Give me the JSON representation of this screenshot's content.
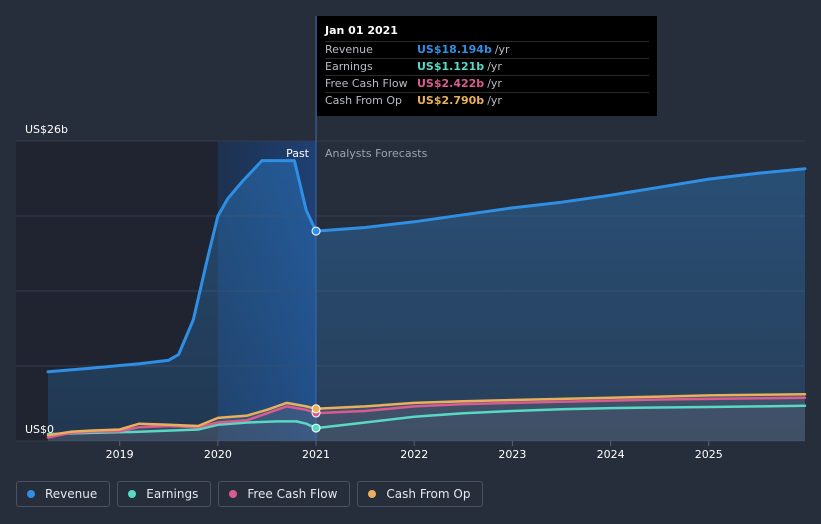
{
  "chart_data": {
    "type": "area",
    "y_top_label": "US$26b",
    "y_bottom_label": "US$0",
    "ylim": [
      0,
      26
    ],
    "xlim": [
      2018.27,
      2025.98
    ],
    "x_ticks": [
      2019,
      2020,
      2021,
      2022,
      2023,
      2024,
      2025
    ],
    "x_tick_labels": [
      "2019",
      "2020",
      "2021",
      "2022",
      "2023",
      "2024",
      "2025"
    ],
    "divider_x": 2021.0,
    "past_label": "Past",
    "forecast_label": "Analysts Forecasts",
    "highlight_range": [
      2020.0,
      2021.0
    ],
    "series": [
      {
        "name": "Revenue",
        "color": "#2f8fe4",
        "x": [
          2018.27,
          2018.7,
          2019.2,
          2019.5,
          2019.6,
          2019.75,
          2019.9,
          2020.0,
          2020.1,
          2020.25,
          2020.45,
          2020.6,
          2020.78,
          2020.9,
          2021.0,
          2021.5,
          2022.0,
          2022.5,
          2023.0,
          2023.5,
          2024.0,
          2024.5,
          2025.0,
          2025.5,
          2025.98
        ],
        "y": [
          6.0,
          6.3,
          6.7,
          7.0,
          7.5,
          10.5,
          16.0,
          19.5,
          21.0,
          22.5,
          24.3,
          24.3,
          24.3,
          20.0,
          18.194,
          18.5,
          19.0,
          19.6,
          20.2,
          20.7,
          21.3,
          22.0,
          22.7,
          23.2,
          23.6
        ]
      },
      {
        "name": "Earnings",
        "color": "#59d8c4",
        "x": [
          2018.27,
          2018.7,
          2019.2,
          2019.5,
          2019.8,
          2020.0,
          2020.3,
          2020.6,
          2020.8,
          2020.9,
          2021.0,
          2021.5,
          2022.0,
          2022.5,
          2023.0,
          2023.5,
          2024.0,
          2024.5,
          2025.0,
          2025.5,
          2025.98
        ],
        "y": [
          0.6,
          0.7,
          0.8,
          0.9,
          1.0,
          1.4,
          1.6,
          1.7,
          1.7,
          1.5,
          1.121,
          1.6,
          2.1,
          2.4,
          2.6,
          2.75,
          2.85,
          2.9,
          2.95,
          3.0,
          3.05
        ]
      },
      {
        "name": "Free Cash Flow",
        "color": "#d85c90",
        "x": [
          2018.27,
          2018.5,
          2018.7,
          2019.0,
          2019.2,
          2019.5,
          2019.8,
          2020.0,
          2020.3,
          2020.5,
          2020.7,
          2020.9,
          2021.0,
          2021.5,
          2022.0,
          2022.5,
          2023.0,
          2023.5,
          2024.0,
          2024.5,
          2025.0,
          2025.5,
          2025.98
        ],
        "y": [
          0.3,
          0.7,
          0.8,
          0.85,
          1.2,
          1.3,
          1.2,
          1.6,
          1.8,
          2.4,
          3.0,
          2.7,
          2.422,
          2.6,
          3.0,
          3.2,
          3.3,
          3.4,
          3.5,
          3.6,
          3.65,
          3.7,
          3.75
        ]
      },
      {
        "name": "Cash From Op",
        "color": "#e8b05c",
        "x": [
          2018.27,
          2018.5,
          2018.7,
          2019.0,
          2019.2,
          2019.5,
          2019.8,
          2020.0,
          2020.3,
          2020.5,
          2020.7,
          2020.9,
          2021.0,
          2021.5,
          2022.0,
          2022.5,
          2023.0,
          2023.5,
          2024.0,
          2024.5,
          2025.0,
          2025.5,
          2025.98
        ],
        "y": [
          0.5,
          0.8,
          0.9,
          1.0,
          1.5,
          1.4,
          1.3,
          2.0,
          2.2,
          2.7,
          3.3,
          3.0,
          2.79,
          3.0,
          3.3,
          3.45,
          3.55,
          3.65,
          3.75,
          3.85,
          3.95,
          4.0,
          4.05
        ]
      }
    ]
  },
  "tooltip": {
    "date": "Jan 01 2021",
    "rows": [
      {
        "name": "Revenue",
        "value": "US$18.194b",
        "unit": "/yr",
        "color": "#2f8fe4"
      },
      {
        "name": "Earnings",
        "value": "US$1.121b",
        "unit": "/yr",
        "color": "#59d8c4"
      },
      {
        "name": "Free Cash Flow",
        "value": "US$2.422b",
        "unit": "/yr",
        "color": "#d85c90"
      },
      {
        "name": "Cash From Op",
        "value": "US$2.790b",
        "unit": "/yr",
        "color": "#e8b05c"
      }
    ]
  },
  "legend": [
    {
      "label": "Revenue",
      "color": "#2f8fe4"
    },
    {
      "label": "Earnings",
      "color": "#59d8c4"
    },
    {
      "label": "Free Cash Flow",
      "color": "#d85c90"
    },
    {
      "label": "Cash From Op",
      "color": "#e8b05c"
    }
  ]
}
